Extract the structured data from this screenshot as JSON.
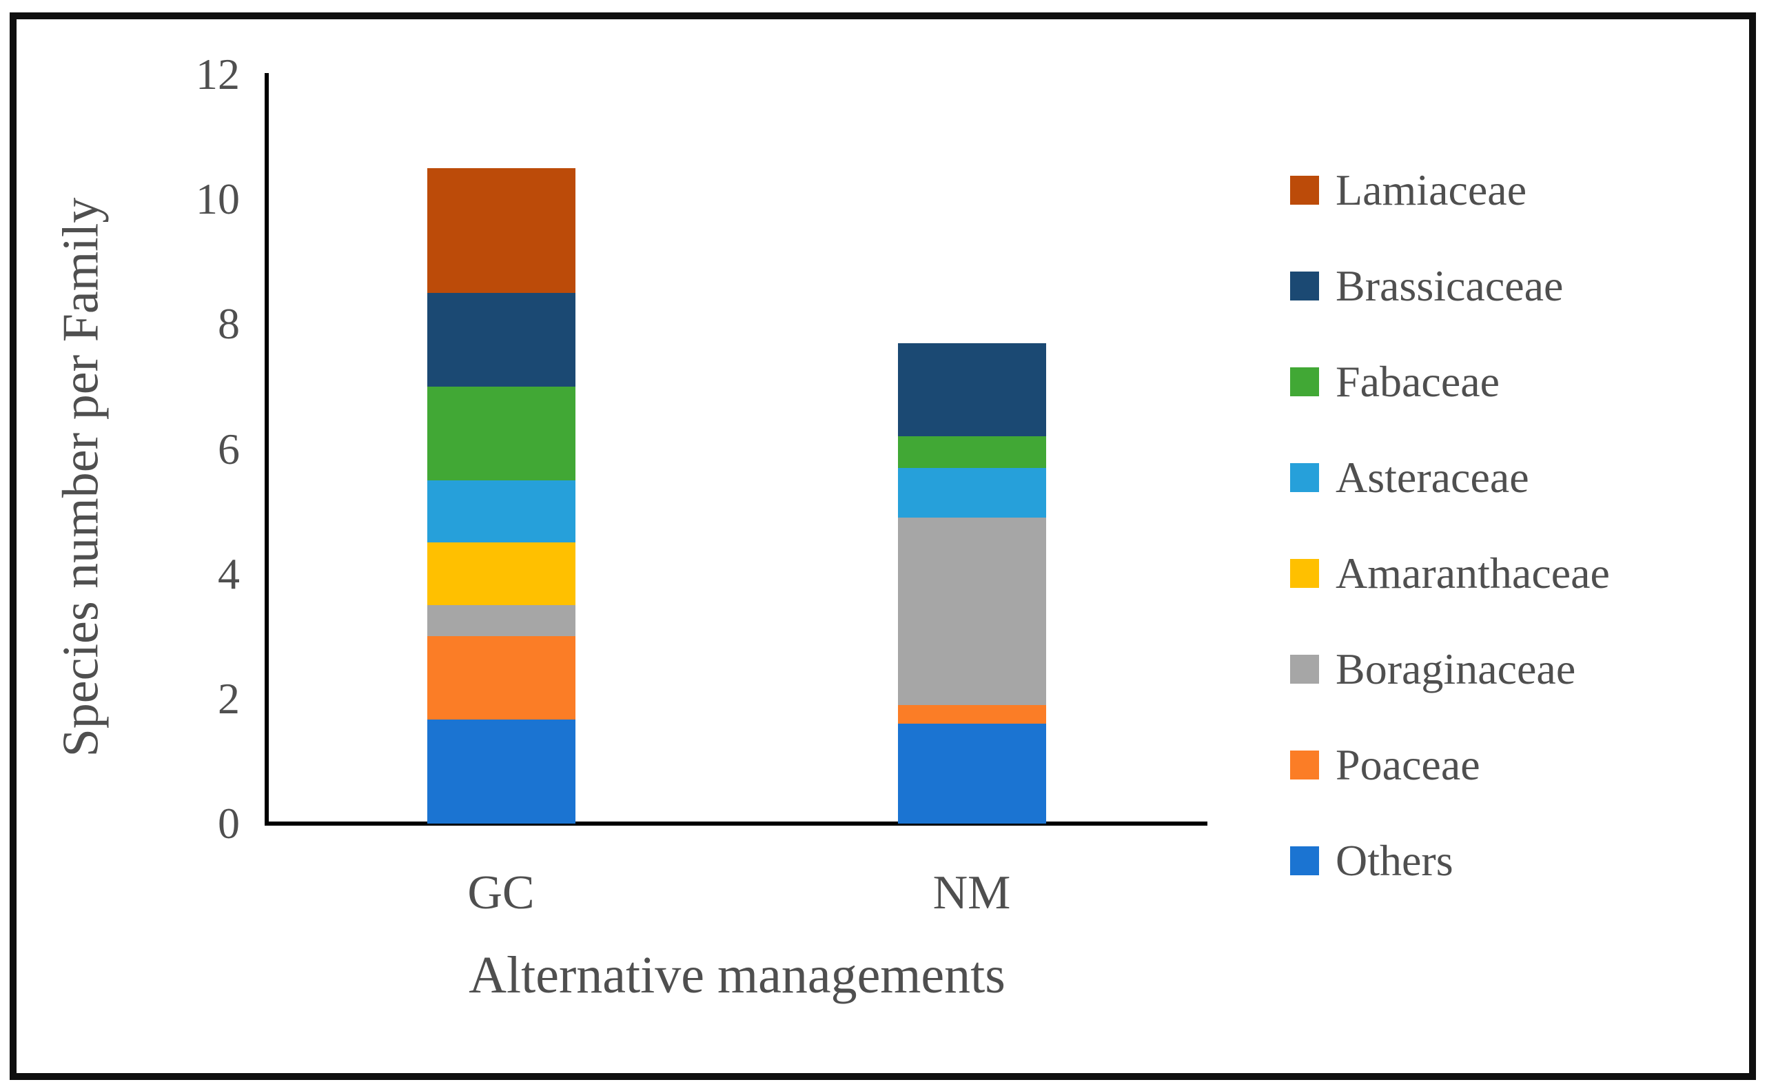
{
  "figure": {
    "border_color": "#0f0f0f",
    "background": "#ffffff",
    "text_color": "#4f4f4f"
  },
  "chart_data": {
    "type": "bar",
    "stacked": true,
    "title": "",
    "xlabel": "Alternative managements",
    "ylabel": "Species number per Family",
    "categories": [
      "GC",
      "NM"
    ],
    "ylim": [
      0,
      12
    ],
    "y_ticks": [
      0,
      2,
      4,
      6,
      8,
      10,
      12
    ],
    "grid": false,
    "legend_position": "right",
    "legend_order_top_to_bottom": [
      "Lamiaceae",
      "Brassicaceae",
      "Fabaceae",
      "Asteraceae",
      "Amaranthaceae",
      "Boraginaceae",
      "Poaceae",
      "Others"
    ],
    "series": [
      {
        "name": "Others",
        "color": "#1b74d2",
        "values": [
          1.67,
          1.6
        ]
      },
      {
        "name": "Poaceae",
        "color": "#fb7d26",
        "values": [
          1.33,
          0.3
        ]
      },
      {
        "name": "Boraginaceae",
        "color": "#a6a6a6",
        "values": [
          0.5,
          3.0
        ]
      },
      {
        "name": "Amaranthaceae",
        "color": "#ffc000",
        "values": [
          1.0,
          0.0
        ]
      },
      {
        "name": "Asteraceae",
        "color": "#26a0da",
        "values": [
          1.0,
          0.8
        ]
      },
      {
        "name": "Fabaceae",
        "color": "#41a835",
        "values": [
          1.5,
          0.5
        ]
      },
      {
        "name": "Brassicaceae",
        "color": "#1b4973",
        "values": [
          1.5,
          1.5
        ]
      },
      {
        "name": "Lamiaceae",
        "color": "#bc4b09",
        "values": [
          2.0,
          0.0
        ]
      }
    ],
    "totals": {
      "GC": 10.5,
      "NM": 7.7
    }
  }
}
